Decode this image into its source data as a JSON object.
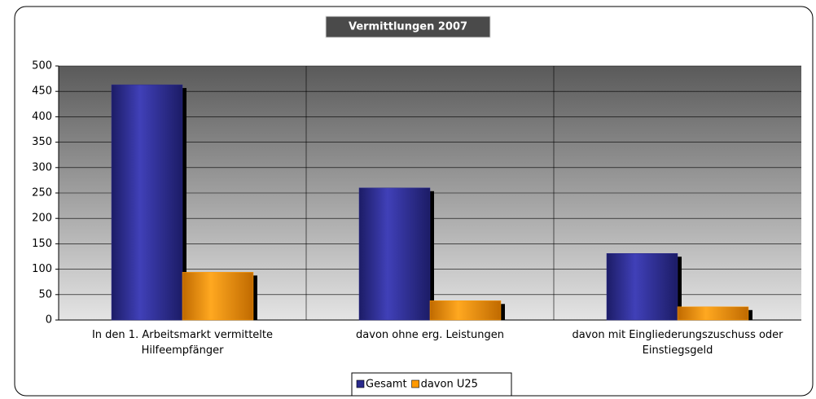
{
  "chart_data": {
    "type": "bar",
    "title": "Vermittlungen 2007",
    "categories": [
      "In den 1. Arbeitsmarkt vermittelte Hilfeempfänger",
      "davon ohne erg. Leistungen",
      "davon mit Eingliederungszuschuss oder Einstiegsgeld"
    ],
    "series": [
      {
        "name": "Gesamt",
        "color": "#2a2a8c",
        "values": [
          463,
          260,
          131
        ]
      },
      {
        "name": "davon U25",
        "color": "#ff9900",
        "values": [
          94,
          38,
          26
        ]
      }
    ],
    "ylim": [
      0,
      500
    ],
    "yticks": [
      0,
      50,
      100,
      150,
      200,
      250,
      300,
      350,
      400,
      450,
      500
    ],
    "grid": true,
    "legend": "bottom"
  }
}
